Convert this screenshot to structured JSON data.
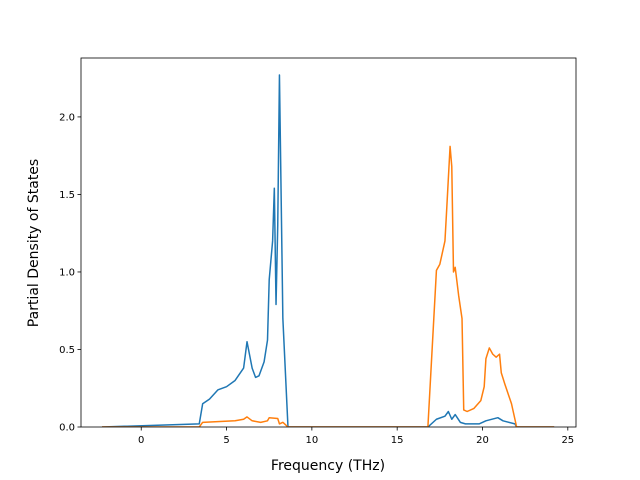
{
  "chart_data": {
    "type": "line",
    "xlabel": "Frequency (THz)",
    "ylabel": "Partial Density of States",
    "xlim": [
      -3.53,
      25.48
    ],
    "ylim": [
      0,
      2.38
    ],
    "xticks": [
      0,
      5,
      10,
      15,
      20,
      25
    ],
    "yticks": [
      {
        "value": 0,
        "label": "0.0"
      },
      0.5,
      {
        "value": 1,
        "label": "1.0"
      },
      1.5,
      {
        "value": 2,
        "label": "2.0"
      }
    ],
    "grid": false,
    "series": [
      {
        "color": "#1f77b4",
        "x": [
          -2.3,
          3.4,
          3.6,
          4.0,
          4.5,
          5.0,
          5.5,
          6.0,
          6.2,
          6.5,
          6.7,
          6.9,
          7.2,
          7.4,
          7.5,
          7.7,
          7.8,
          7.9,
          8.0,
          8.1,
          8.3,
          8.6,
          16.8,
          17.3,
          17.8,
          18.0,
          18.2,
          18.4,
          18.7,
          19.0,
          19.8,
          20.2,
          20.9,
          21.2,
          21.9,
          22.0,
          24.2
        ],
        "values": [
          0,
          0.02,
          0.15,
          0.18,
          0.24,
          0.26,
          0.3,
          0.38,
          0.55,
          0.38,
          0.32,
          0.33,
          0.42,
          0.56,
          0.95,
          1.2,
          1.54,
          0.79,
          1.3,
          2.27,
          0.7,
          0,
          0,
          0.05,
          0.07,
          0.1,
          0.05,
          0.08,
          0.03,
          0.02,
          0.02,
          0.04,
          0.06,
          0.04,
          0.02,
          0,
          0
        ]
      },
      {
        "color": "#ff7f0e",
        "x": [
          -2.3,
          3.4,
          3.6,
          5.5,
          6.0,
          6.2,
          6.5,
          7.0,
          7.4,
          7.5,
          8.0,
          8.1,
          8.3,
          8.5,
          8.6,
          16.8,
          17.3,
          17.5,
          17.8,
          17.9,
          18.1,
          18.2,
          18.3,
          18.4,
          18.6,
          18.8,
          18.9,
          19.1,
          19.5,
          19.9,
          20.1,
          20.2,
          20.4,
          20.6,
          20.8,
          21.0,
          21.1,
          21.3,
          21.7,
          21.9,
          22.0,
          24.2
        ],
        "values": [
          0,
          0,
          0.03,
          0.04,
          0.05,
          0.065,
          0.04,
          0.03,
          0.04,
          0.06,
          0.055,
          0.02,
          0.03,
          0.01,
          0,
          0,
          1.01,
          1.05,
          1.2,
          1.4,
          1.81,
          1.68,
          1.0,
          1.03,
          0.85,
          0.7,
          0.11,
          0.1,
          0.12,
          0.17,
          0.26,
          0.44,
          0.51,
          0.47,
          0.45,
          0.47,
          0.35,
          0.28,
          0.15,
          0.05,
          0,
          0
        ]
      }
    ]
  }
}
